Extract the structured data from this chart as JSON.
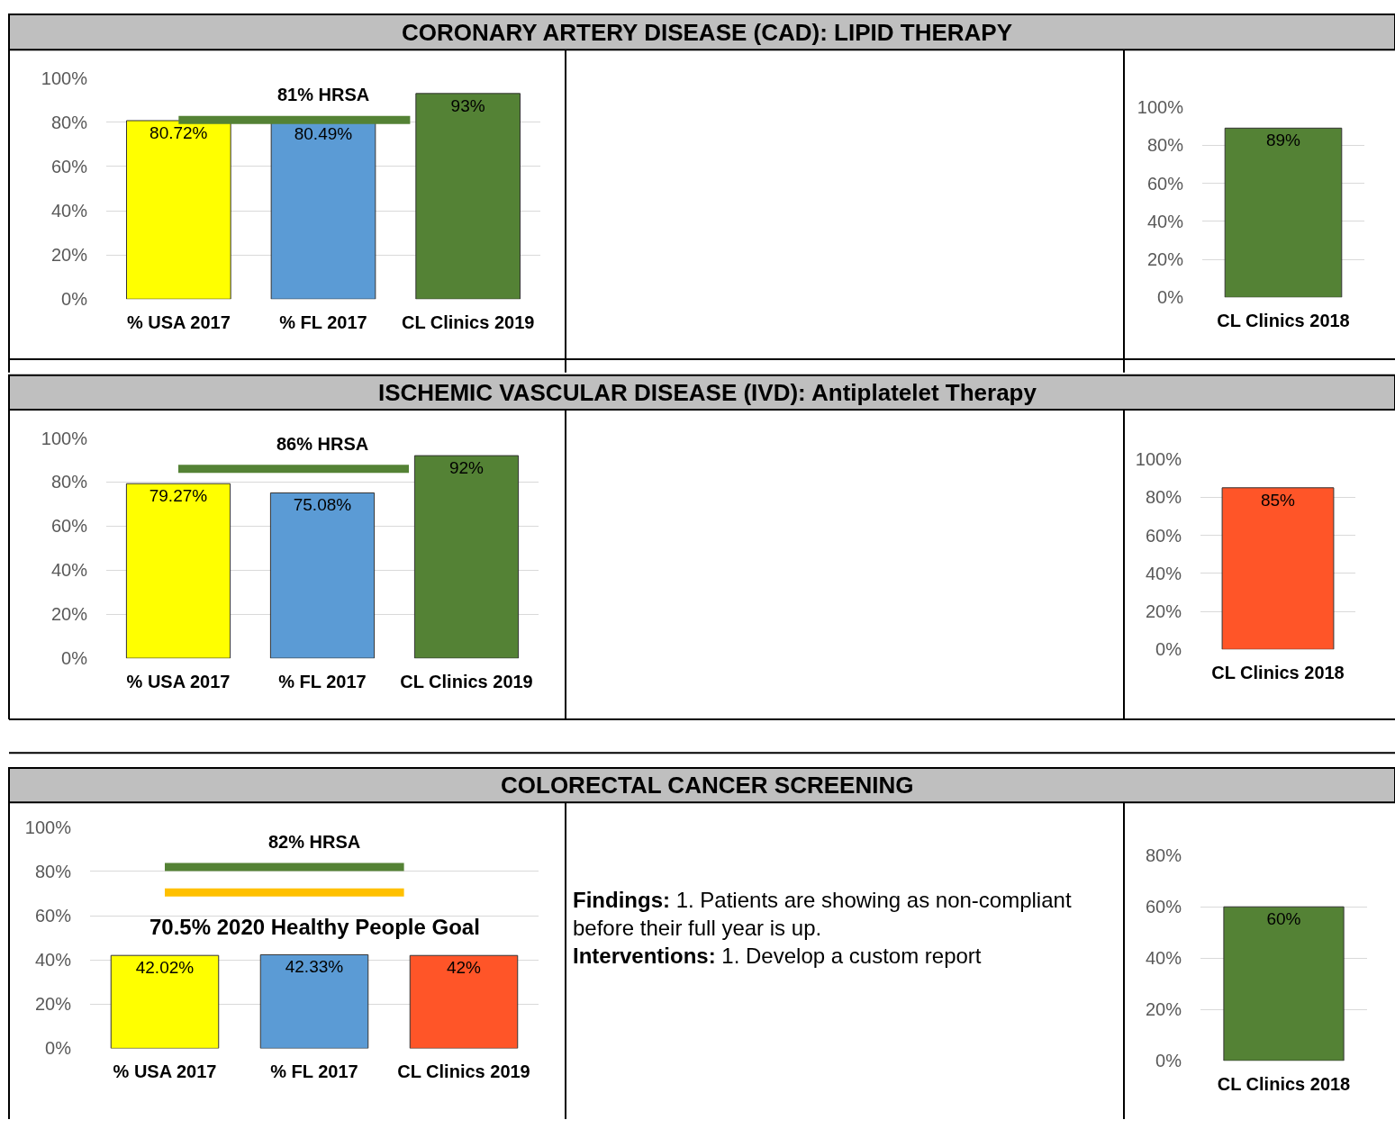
{
  "chart_data": [
    {
      "type": "bar",
      "title": "CORONARY ARTERY DISEASE (CAD): LIPID THERAPY",
      "categories": [
        "% USA 2017",
        "% FL 2017",
        "CL Clinics 2019"
      ],
      "values": [
        80.72,
        80.49,
        93
      ],
      "colors": [
        "#ffff00",
        "#5b9bd5",
        "#548235"
      ],
      "value_labels": [
        "80.72%",
        "80.49%",
        "93%"
      ],
      "ylim": [
        0,
        100
      ],
      "yticks": [
        {
          "value": 0,
          "label": "0%"
        },
        {
          "value": 20,
          "label": "20%"
        },
        {
          "value": 40,
          "label": "40%"
        },
        {
          "value": 60,
          "label": "60%"
        },
        {
          "value": 80,
          "label": "80%"
        },
        {
          "value": 100,
          "label": "100%"
        }
      ],
      "grid": "y",
      "ref_lines": [
        {
          "axis": "y",
          "value": 81,
          "label": "81% HRSA",
          "color": "#548235"
        }
      ]
    },
    {
      "type": "bar",
      "categories": [
        "CL Clinics 2018"
      ],
      "values": [
        89
      ],
      "colors": [
        "#548235"
      ],
      "value_labels": [
        "89%"
      ],
      "ylim": [
        0,
        100
      ],
      "yticks": [
        {
          "value": 0,
          "label": "0%"
        },
        {
          "value": 20,
          "label": "20%"
        },
        {
          "value": 40,
          "label": "40%"
        },
        {
          "value": 60,
          "label": "60%"
        },
        {
          "value": 80,
          "label": "80%"
        },
        {
          "value": 100,
          "label": "100%"
        }
      ],
      "grid": "y"
    },
    {
      "type": "bar",
      "title": "ISCHEMIC VASCULAR DISEASE (IVD): Antiplatelet Therapy",
      "categories": [
        "% USA 2017",
        "% FL 2017",
        "CL Clinics 2019"
      ],
      "values": [
        79.27,
        75.08,
        92
      ],
      "colors": [
        "#ffff00",
        "#5b9bd5",
        "#548235"
      ],
      "value_labels": [
        "79.27%",
        "75.08%",
        "92%"
      ],
      "ylim": [
        0,
        100
      ],
      "yticks": [
        {
          "value": 0,
          "label": "0%"
        },
        {
          "value": 20,
          "label": "20%"
        },
        {
          "value": 40,
          "label": "40%"
        },
        {
          "value": 60,
          "label": "60%"
        },
        {
          "value": 80,
          "label": "80%"
        },
        {
          "value": 100,
          "label": "100%"
        }
      ],
      "grid": "y",
      "ref_lines": [
        {
          "axis": "y",
          "value": 86,
          "label": "86% HRSA",
          "color": "#548235"
        }
      ]
    },
    {
      "type": "bar",
      "categories": [
        "CL Clinics 2018"
      ],
      "values": [
        85
      ],
      "colors": [
        "#ff5528"
      ],
      "value_labels": [
        "85%"
      ],
      "ylim": [
        0,
        100
      ],
      "yticks": [
        {
          "value": 0,
          "label": "0%"
        },
        {
          "value": 20,
          "label": "20%"
        },
        {
          "value": 40,
          "label": "40%"
        },
        {
          "value": 60,
          "label": "60%"
        },
        {
          "value": 80,
          "label": "80%"
        },
        {
          "value": 100,
          "label": "100%"
        }
      ],
      "grid": "y"
    },
    {
      "type": "bar",
      "title": "COLORECTAL CANCER SCREENING",
      "categories": [
        "% USA 2017",
        "% FL 2017",
        "CL Clinics 2019"
      ],
      "values": [
        42.02,
        42.33,
        42
      ],
      "colors": [
        "#ffff00",
        "#5b9bd5",
        "#ff5528"
      ],
      "value_labels": [
        "42.02%",
        "42.33%",
        "42%"
      ],
      "ylim": [
        0,
        100
      ],
      "yticks": [
        {
          "value": 0,
          "label": "0%"
        },
        {
          "value": 20,
          "label": "20%"
        },
        {
          "value": 40,
          "label": "40%"
        },
        {
          "value": 60,
          "label": "60%"
        },
        {
          "value": 80,
          "label": "80%"
        },
        {
          "value": 100,
          "label": "100%"
        }
      ],
      "grid": "y",
      "ref_lines": [
        {
          "axis": "y",
          "value": 82,
          "label": "82% HRSA",
          "color": "#548235"
        },
        {
          "axis": "y",
          "value": 70.5,
          "label": "70.5% 2020 Healthy People Goal",
          "color": "#ffc000"
        }
      ]
    },
    {
      "type": "other",
      "annotations": [
        "Findings: 1. Patients are showing as non-compliant before their full year is up.",
        "Interventions: 1. Develop a custom report"
      ]
    },
    {
      "type": "bar",
      "categories": [
        "CL Clinics 2018"
      ],
      "values": [
        60
      ],
      "colors": [
        "#548235"
      ],
      "value_labels": [
        "60%"
      ],
      "ylim": [
        0,
        80
      ],
      "yticks": [
        {
          "value": 0,
          "label": "0%"
        },
        {
          "value": 20,
          "label": "20%"
        },
        {
          "value": 40,
          "label": "40%"
        },
        {
          "value": 60,
          "label": "60%"
        },
        {
          "value": 80,
          "label": "80%"
        }
      ],
      "grid": "y"
    }
  ]
}
